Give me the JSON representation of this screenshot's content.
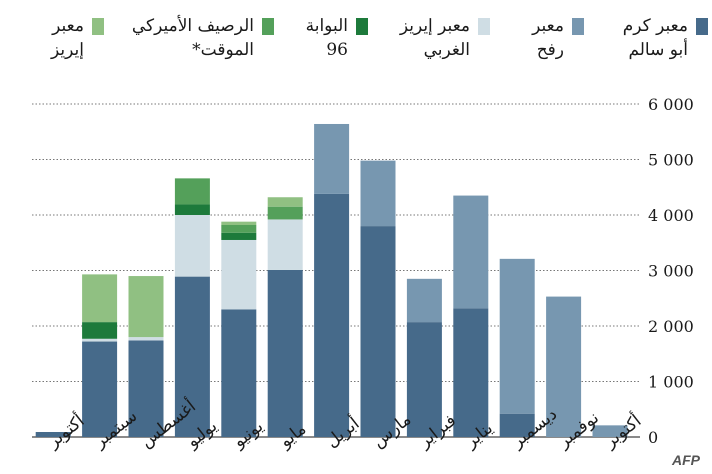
{
  "chart_data": {
    "type": "bar",
    "stacked": true,
    "categories": [
      "أكتوبر",
      "نوفمبر",
      "ديسمبر",
      "يناير",
      "فبراير",
      "مارس",
      "أبريل",
      "مايو",
      "يونيو",
      "يوليو",
      "أغسطس",
      "سبتمبر",
      "أكتوبر"
    ],
    "series": [
      {
        "name": "معبر كرم أبو سالم",
        "color": "#466a8a",
        "values": [
          0,
          0,
          420,
          2320,
          2070,
          3800,
          4380,
          3010,
          2300,
          2890,
          1740,
          1720,
          90
        ]
      },
      {
        "name": "معبر رفح",
        "color": "#7797b0",
        "values": [
          210,
          2530,
          2790,
          2030,
          780,
          1180,
          1260,
          0,
          0,
          0,
          0,
          0,
          0
        ]
      },
      {
        "name": "معبر إيريز الغربي",
        "color": "#cfdde4",
        "values": [
          0,
          0,
          0,
          0,
          0,
          0,
          0,
          910,
          1250,
          1110,
          60,
          50,
          0
        ]
      },
      {
        "name": "البوابة 96",
        "color": "#1d7a3b",
        "values": [
          0,
          0,
          0,
          0,
          0,
          0,
          0,
          0,
          130,
          190,
          0,
          300,
          0
        ]
      },
      {
        "name": "الرصيف الأميركي الموقت*",
        "color": "#54a05a",
        "values": [
          0,
          0,
          0,
          0,
          0,
          0,
          0,
          230,
          140,
          470,
          0,
          0,
          0
        ]
      },
      {
        "name": "معبر إيريز",
        "color": "#90c082",
        "values": [
          0,
          0,
          0,
          0,
          0,
          0,
          0,
          170,
          60,
          0,
          1100,
          860,
          0
        ]
      }
    ],
    "yticks": [
      "0",
      "1 000",
      "2 000",
      "3 000",
      "4 000",
      "5 000",
      "6 000"
    ],
    "ylim": [
      0,
      6000
    ],
    "grid": true
  },
  "legend": [
    {
      "label": "معبر كرم\nأبو سالم",
      "color": "#466a8a"
    },
    {
      "label": "معبر\nرفح",
      "color": "#7797b0"
    },
    {
      "label": "معبر إيريز\nالغربي",
      "color": "#cfdde4"
    },
    {
      "label": "البوابة\n96",
      "color": "#1d7a3b"
    },
    {
      "label": "الرصيف الأميركي\nالموقت*",
      "color": "#54a05a"
    },
    {
      "label": "معبر\nإيريز",
      "color": "#90c082"
    }
  ],
  "source_logo": "AFP"
}
